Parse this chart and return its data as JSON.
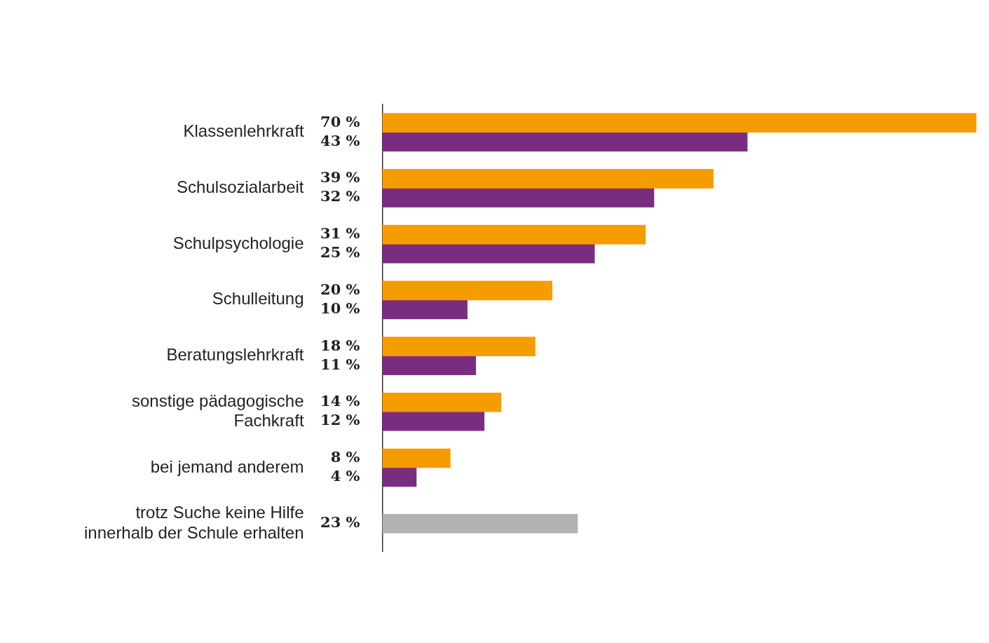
{
  "chart_data": {
    "type": "bar",
    "orientation": "horizontal",
    "categories": [
      "Klassenlehrkraft",
      "Schulsozialarbeit",
      "Schulpsychologie",
      "Schulleitung",
      "Beratungslehrkraft",
      "sonstige pädagogische\nFachkraft",
      "bei jemand anderem",
      "trotz Suche keine Hilfe\ninnerhalb der Schule erhalten"
    ],
    "series": [
      {
        "color": "#f59c00",
        "values": [
          70,
          39,
          31,
          20,
          18,
          14,
          8,
          null
        ],
        "value_labels": [
          "70 %",
          "39 %",
          "31 %",
          "20 %",
          "18 %",
          "14 %",
          "8 %",
          null
        ]
      },
      {
        "color": "#7a2d80",
        "values": [
          43,
          32,
          25,
          10,
          11,
          12,
          4,
          null
        ],
        "value_labels": [
          "43 %",
          "32 %",
          "25 %",
          "10 %",
          "11 %",
          "12 %",
          "4 %",
          null
        ]
      },
      {
        "color": "#b2b2b2",
        "values": [
          null,
          null,
          null,
          null,
          null,
          null,
          null,
          23
        ],
        "value_labels": [
          null,
          null,
          null,
          null,
          null,
          null,
          null,
          "23 %"
        ]
      }
    ],
    "xlim": [
      0,
      70
    ],
    "tick_labels": "y",
    "grid": false,
    "legend": false
  }
}
